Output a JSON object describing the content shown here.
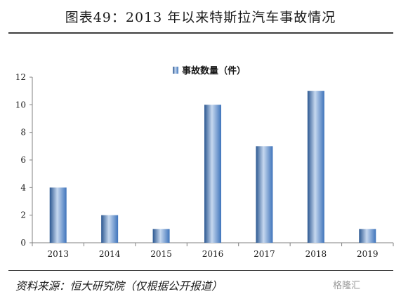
{
  "header": {
    "title": "图表49：2013 年以来特斯拉汽车事故情况"
  },
  "footer": {
    "source": "资料来源：恒大研究院（仅根据公开报道）",
    "watermark": "格隆汇"
  },
  "colors": {
    "bar": "#3f74bb",
    "bar_highlight": "#c6d8ef",
    "bar_shadow": "#2b5791",
    "axis": "#808080"
  },
  "chart_data": {
    "type": "bar",
    "categories": [
      "2013",
      "2014",
      "2015",
      "2016",
      "2017",
      "2018",
      "2019"
    ],
    "series": [
      {
        "name": "事故数量（件）",
        "values": [
          4,
          2,
          1,
          10,
          7,
          11,
          1
        ]
      }
    ],
    "ylim": [
      0,
      12
    ],
    "yticks": [
      0,
      2,
      4,
      6,
      8,
      10,
      12
    ],
    "legend_position": "top-center",
    "grid": false
  }
}
